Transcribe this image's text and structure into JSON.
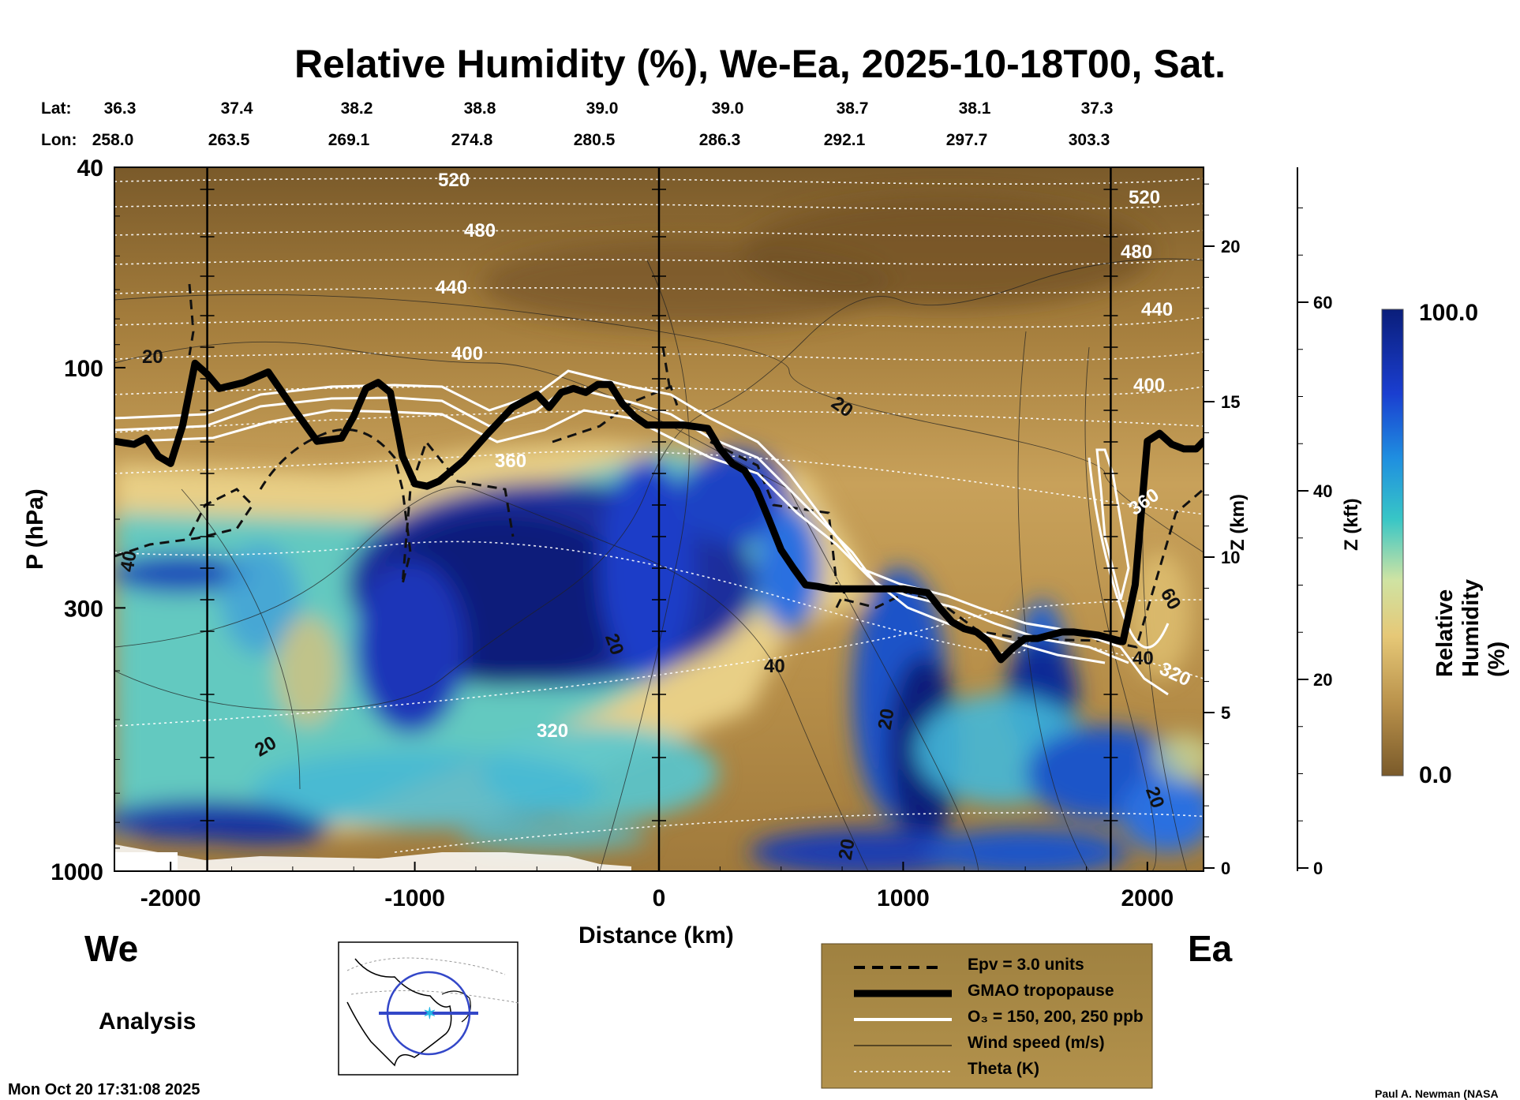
{
  "title": "Relative Humidity (%), We-Ea, 2025-10-18T00, Sat.",
  "lat_label": "Lat:",
  "lon_label": "Lon:",
  "lat_values": [
    "36.3",
    "37.4",
    "38.2",
    "38.8",
    "39.0",
    "39.0",
    "38.7",
    "38.1",
    "37.3"
  ],
  "lon_values": [
    "258.0",
    "263.5",
    "269.1",
    "274.8",
    "280.5",
    "286.3",
    "292.1",
    "297.7",
    "303.3"
  ],
  "left_end_label": "We",
  "right_end_label": "Ea",
  "analysis_label": "Analysis",
  "timestamp": "Mon Oct 20 17:31:08 2025",
  "credit": "Paul A. Newman (NASA",
  "colorbar": {
    "label": "Relative Humidity (%)",
    "max_label": "100.0",
    "min_label": "0.0"
  },
  "legend": {
    "epv": "Epv = 3.0 units",
    "tropopause": "GMAO tropopause",
    "o3": "O₃ = 150, 200, 250 ppb",
    "wind": "Wind speed (m/s)",
    "theta": "Theta (K)"
  },
  "colors": {
    "dry_brown": "#7a5a2a",
    "tan": "#c8a15a",
    "deep_blue": "#101a86",
    "cyan": "#20b8cc",
    "legend_bg": "#a88a46"
  },
  "chart_data": {
    "type": "heatmap",
    "title": "Relative Humidity (%), We-Ea, 2025-10-18T00, Sat.",
    "xlabel": "Distance (km)",
    "ylabel": "P (hPa)",
    "right_axis_1_label": "Z (km)",
    "right_axis_2_label": "Z (kft)",
    "xlim": [
      -2230,
      2230
    ],
    "ylim_pressure": [
      1000,
      40
    ],
    "x_ticks": [
      -2000,
      -1000,
      0,
      1000,
      2000
    ],
    "x_tick_labels": [
      "-2000",
      "-1000",
      "0",
      "1000",
      "2000"
    ],
    "p_ticks": [
      40,
      100,
      300,
      1000
    ],
    "p_tick_labels": [
      "40",
      "100",
      "300",
      "1000"
    ],
    "z_km_ticks": [
      0,
      5,
      10,
      15,
      20
    ],
    "z_km_tick_labels": [
      "0",
      "5",
      "10",
      "15",
      "20"
    ],
    "z_kft_ticks": [
      0,
      20,
      40,
      60
    ],
    "z_kft_tick_labels": [
      "0",
      "20",
      "40",
      "60"
    ],
    "vertical_marker_lines_km": [
      -1850,
      0,
      1850
    ],
    "colorbar_range": [
      0,
      100
    ],
    "tropopause": {
      "x": [
        -2230,
        -2150,
        -2100,
        -2050,
        -2000,
        -1950,
        -1900,
        -1850,
        -1800,
        -1700,
        -1600,
        -1500,
        -1400,
        -1300,
        -1250,
        -1200,
        -1150,
        -1100,
        -1050,
        -1000,
        -950,
        -900,
        -800,
        -700,
        -600,
        -500,
        -450,
        -400,
        -350,
        -300,
        -250,
        -200,
        -150,
        -100,
        -50,
        0,
        100,
        200,
        250,
        300,
        350,
        400,
        450,
        500,
        550,
        600,
        650,
        700,
        800,
        900,
        1000,
        1100,
        1150,
        1200,
        1250,
        1300,
        1350,
        1400,
        1450,
        1500,
        1550,
        1600,
        1650,
        1700,
        1800,
        1900,
        1950,
        2000,
        2050,
        2100,
        2150,
        2200,
        2230
      ],
      "p": [
        140,
        142,
        138,
        150,
        155,
        130,
        98,
        103,
        110,
        107,
        102,
        120,
        140,
        138,
        125,
        110,
        107,
        112,
        150,
        170,
        172,
        168,
        153,
        135,
        120,
        113,
        120,
        112,
        110,
        112,
        108,
        108,
        118,
        125,
        130,
        130,
        130,
        132,
        145,
        155,
        160,
        175,
        200,
        230,
        250,
        270,
        272,
        275,
        275,
        275,
        275,
        280,
        300,
        320,
        330,
        335,
        350,
        380,
        360,
        345,
        345,
        340,
        335,
        335,
        340,
        350,
        270,
        140,
        135,
        142,
        145,
        145,
        140
      ]
    },
    "theta_contours_K": [
      320,
      360,
      400,
      440,
      480,
      520
    ],
    "wind_speed_labels_mps": [
      20,
      20,
      20,
      20,
      20,
      20,
      20,
      40,
      40,
      60
    ],
    "ozone_contours_ppb": [
      150,
      200,
      250
    ],
    "epv_contour_units": 3.0
  }
}
